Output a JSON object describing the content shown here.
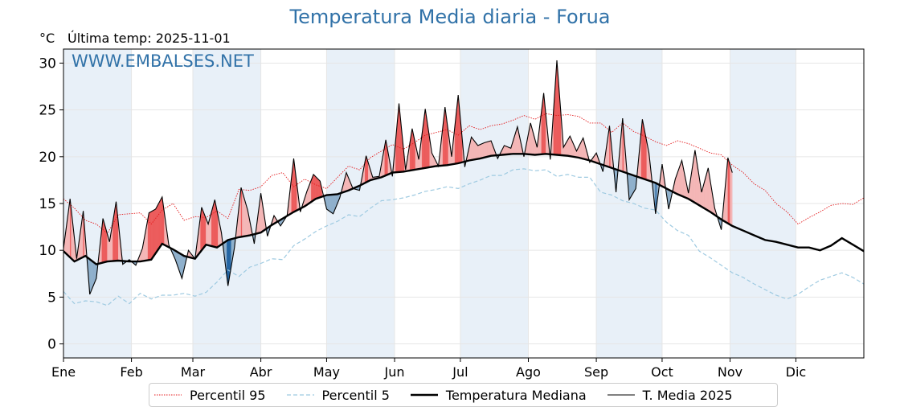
{
  "chart_data": {
    "type": "line",
    "title": "Temperatura Media diaria - Forua",
    "unit_label": "°C",
    "last_temp": "Última temp: 2025-11-01",
    "watermark": "WWW.EMBALSES.NET",
    "ylim": [
      -1.5,
      31.5
    ],
    "yticks": [
      0,
      5,
      10,
      15,
      20,
      25,
      30
    ],
    "x_range_days": [
      0,
      365
    ],
    "months": [
      "Ene",
      "Feb",
      "Mar",
      "Abr",
      "May",
      "Jun",
      "Jul",
      "Ago",
      "Sep",
      "Oct",
      "Nov",
      "Dic"
    ],
    "month_start_day": [
      0,
      31,
      59,
      90,
      120,
      151,
      181,
      212,
      243,
      273,
      304,
      334
    ],
    "grid": true,
    "legend_position": "bottom",
    "colors": {
      "p95": "#e41a1c",
      "p5": "#9ecae1",
      "median": "#000000",
      "actual": "#000000",
      "above_fill": "#f4b6b6",
      "above_fill_strong": "#ec5c5c",
      "below_fill": "#8fb0cc",
      "below_fill_strong": "#2465a3",
      "band": "#e8f0f8",
      "title": "#3172a8"
    },
    "series": [
      {
        "name": "Percentil 95",
        "style": "dotted",
        "x": [
          0,
          5,
          10,
          15,
          20,
          25,
          30,
          35,
          40,
          45,
          50,
          55,
          60,
          65,
          70,
          75,
          80,
          85,
          90,
          95,
          100,
          105,
          110,
          115,
          120,
          125,
          130,
          135,
          140,
          145,
          150,
          155,
          160,
          165,
          170,
          175,
          180,
          185,
          190,
          195,
          200,
          205,
          210,
          215,
          220,
          225,
          230,
          235,
          240,
          245,
          250,
          255,
          260,
          265,
          270,
          275,
          280,
          285,
          290,
          295,
          300,
          305,
          310,
          315,
          320,
          325,
          330,
          335,
          340,
          345,
          350,
          355,
          360,
          365
        ],
        "values": [
          15.5,
          14.5,
          13.2,
          12.8,
          11.8,
          13.8,
          13.9,
          14.0,
          12.8,
          14.3,
          15.0,
          13.2,
          13.6,
          13.5,
          14.2,
          13.4,
          16.5,
          16.4,
          16.8,
          18.0,
          18.3,
          16.8,
          17.6,
          17.0,
          16.6,
          17.8,
          19.0,
          18.6,
          19.9,
          20.6,
          21.3,
          20.8,
          21.5,
          22.3,
          22.6,
          22.9,
          22.3,
          23.3,
          22.9,
          23.3,
          23.5,
          23.9,
          24.4,
          24.0,
          24.6,
          24.4,
          24.5,
          24.3,
          23.6,
          23.6,
          22.6,
          23.6,
          22.7,
          22.2,
          21.6,
          21.2,
          21.7,
          21.4,
          20.9,
          20.4,
          20.2,
          19.1,
          18.3,
          17.1,
          16.4,
          15.0,
          14.1,
          12.8,
          13.5,
          14.1,
          14.8,
          15.0,
          14.9,
          15.6
        ]
      },
      {
        "name": "Percentil 5",
        "style": "dashed",
        "x": [
          0,
          5,
          10,
          15,
          20,
          25,
          30,
          35,
          40,
          45,
          50,
          55,
          60,
          65,
          70,
          75,
          80,
          85,
          90,
          95,
          100,
          105,
          110,
          115,
          120,
          125,
          130,
          135,
          140,
          145,
          150,
          155,
          160,
          165,
          170,
          175,
          180,
          185,
          190,
          195,
          200,
          205,
          210,
          215,
          220,
          225,
          230,
          235,
          240,
          245,
          250,
          255,
          260,
          265,
          270,
          275,
          280,
          285,
          290,
          295,
          300,
          305,
          310,
          315,
          320,
          325,
          330,
          335,
          340,
          345,
          350,
          355,
          360,
          365
        ],
        "values": [
          5.6,
          4.3,
          4.6,
          4.5,
          4.1,
          5.1,
          4.3,
          5.4,
          4.8,
          5.2,
          5.2,
          5.4,
          5.1,
          5.5,
          6.6,
          7.9,
          7.2,
          8.2,
          8.6,
          9.1,
          9.0,
          10.5,
          11.2,
          12.0,
          12.6,
          13.1,
          13.8,
          13.6,
          14.5,
          15.3,
          15.4,
          15.6,
          15.9,
          16.3,
          16.5,
          16.8,
          16.6,
          17.1,
          17.5,
          18.0,
          18.0,
          18.6,
          18.7,
          18.5,
          18.6,
          17.9,
          18.1,
          17.8,
          17.8,
          16.2,
          15.9,
          15.3,
          15.0,
          14.5,
          14.3,
          13.0,
          12.1,
          11.6,
          9.9,
          9.2,
          8.4,
          7.6,
          7.1,
          6.4,
          5.8,
          5.2,
          4.8,
          5.3,
          6.1,
          6.8,
          7.2,
          7.6,
          7.1,
          6.4
        ]
      },
      {
        "name": "Temperatura Mediana",
        "style": "solid-thick",
        "x": [
          0,
          5,
          10,
          15,
          20,
          25,
          30,
          35,
          40,
          45,
          50,
          55,
          60,
          65,
          70,
          75,
          80,
          85,
          90,
          95,
          100,
          105,
          110,
          115,
          120,
          125,
          130,
          135,
          140,
          145,
          150,
          155,
          160,
          165,
          170,
          175,
          180,
          185,
          190,
          195,
          200,
          205,
          210,
          215,
          220,
          225,
          230,
          235,
          240,
          245,
          250,
          255,
          260,
          265,
          270,
          275,
          280,
          285,
          290,
          295,
          300,
          305,
          310,
          315,
          320,
          325,
          330,
          335,
          340,
          345,
          350,
          355,
          360,
          365
        ],
        "values": [
          9.9,
          8.8,
          9.4,
          8.5,
          8.8,
          8.9,
          8.8,
          8.8,
          9.0,
          10.7,
          10.1,
          9.4,
          9.1,
          10.6,
          10.3,
          11.1,
          11.4,
          11.6,
          11.9,
          12.7,
          13.4,
          14.1,
          14.7,
          15.5,
          15.9,
          16.0,
          16.4,
          16.9,
          17.5,
          17.8,
          18.3,
          18.4,
          18.6,
          18.8,
          19.0,
          19.1,
          19.3,
          19.6,
          19.8,
          20.1,
          20.2,
          20.3,
          20.3,
          20.2,
          20.3,
          20.2,
          20.1,
          19.9,
          19.6,
          19.2,
          18.8,
          18.4,
          18.0,
          17.6,
          17.2,
          16.6,
          16.0,
          15.5,
          14.8,
          14.1,
          13.3,
          12.6,
          12.1,
          11.6,
          11.1,
          10.9,
          10.6,
          10.3,
          10.3,
          10.0,
          10.5,
          11.3,
          10.6,
          9.9
        ]
      },
      {
        "name": "T. Media 2025",
        "style": "solid-thin",
        "x": [
          0,
          3,
          6,
          9,
          12,
          15,
          18,
          21,
          24,
          27,
          30,
          33,
          36,
          39,
          42,
          45,
          48,
          51,
          54,
          57,
          60,
          63,
          66,
          69,
          72,
          75,
          78,
          81,
          84,
          87,
          90,
          93,
          96,
          99,
          102,
          105,
          108,
          111,
          114,
          117,
          120,
          123,
          126,
          129,
          132,
          135,
          138,
          141,
          144,
          147,
          150,
          153,
          156,
          159,
          162,
          165,
          168,
          171,
          174,
          177,
          180,
          183,
          186,
          189,
          192,
          195,
          198,
          201,
          204,
          207,
          210,
          213,
          216,
          219,
          222,
          225,
          228,
          231,
          234,
          237,
          240,
          243,
          246,
          249,
          252,
          255,
          258,
          261,
          264,
          267,
          270,
          273,
          276,
          279,
          282,
          285,
          288,
          291,
          294,
          297,
          300,
          303,
          305
        ],
        "values": [
          10.2,
          15.5,
          9.1,
          14.2,
          5.3,
          7.0,
          13.4,
          10.9,
          15.2,
          8.5,
          9.0,
          8.4,
          10.2,
          14.0,
          14.4,
          15.7,
          10.6,
          9.0,
          7.0,
          10.0,
          9.1,
          14.6,
          12.8,
          15.4,
          11.9,
          6.2,
          10.3,
          16.7,
          14.3,
          10.7,
          16.1,
          11.5,
          13.7,
          12.6,
          13.7,
          19.8,
          14.1,
          16.3,
          18.1,
          17.4,
          14.4,
          13.9,
          15.6,
          18.3,
          16.6,
          16.4,
          20.1,
          17.8,
          17.9,
          21.8,
          17.9,
          25.7,
          18.6,
          23.0,
          19.7,
          25.1,
          20.4,
          19.0,
          25.3,
          20.0,
          26.6,
          18.9,
          22.1,
          21.2,
          21.5,
          21.7,
          19.8,
          21.2,
          20.9,
          23.2,
          20.0,
          23.6,
          21.0,
          26.8,
          19.7,
          30.3,
          21.0,
          22.2,
          20.6,
          22.0,
          19.4,
          20.4,
          18.4,
          23.3,
          16.2,
          24.1,
          15.4,
          16.6,
          24.0,
          20.4,
          13.9,
          19.2,
          14.4,
          17.6,
          19.6,
          16.1,
          20.7,
          16.2,
          18.8,
          14.5,
          12.2,
          19.9,
          18.3
        ]
      }
    ],
    "legend": {
      "p95": "Percentil 95",
      "p5": "Percentil 5",
      "median": "Temperatura Mediana",
      "actual": "T. Media 2025"
    }
  }
}
